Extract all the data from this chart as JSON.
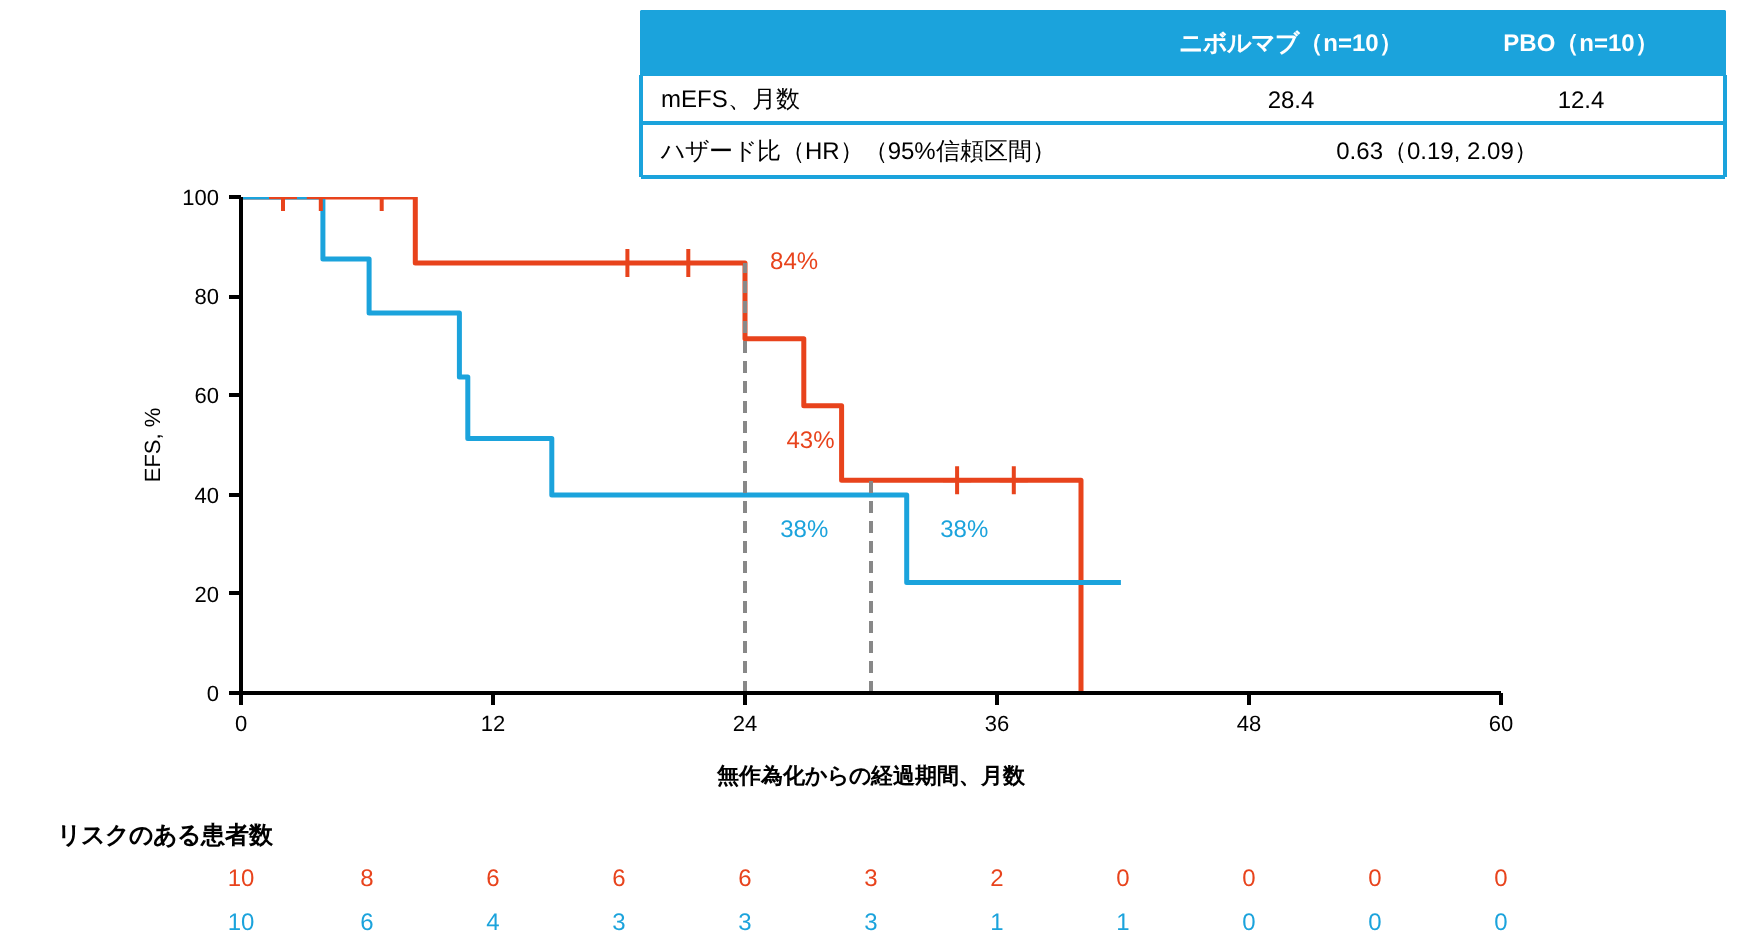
{
  "chart_data": {
    "type": "step",
    "xlabel": "無作為化からの経過期間、月数",
    "ylabel": "EFS, %",
    "xlim": [
      0,
      60
    ],
    "ylim": [
      0,
      100
    ],
    "xticks": [
      0,
      12,
      24,
      36,
      48,
      60
    ],
    "yticks": [
      0,
      20,
      40,
      60,
      80,
      100
    ],
    "grid": false,
    "line_style": "solid",
    "series": [
      {
        "color": "#e8431c",
        "x": [
          0,
          8.3,
          24,
          26.8,
          28.6,
          40
        ],
        "values": [
          100,
          86.7,
          71.4,
          57.9,
          42.9,
          0
        ]
      },
      {
        "color": "#1ba3dc",
        "x": [
          0,
          3.9,
          6.1,
          10.4,
          10.8,
          14.8,
          31.7,
          41.9
        ],
        "values": [
          100,
          87.5,
          76.6,
          63.7,
          51.3,
          39.9,
          22.3,
          22.3
        ]
      },
      {
        "type": "scatter",
        "marker": "cross",
        "color": "#e8431c",
        "x": [
          2.0,
          3.8,
          6.7,
          18.4,
          21.3,
          34.1,
          36.8
        ],
        "values": [
          100,
          100,
          100,
          86.7,
          86.7,
          42.9,
          42.9
        ]
      }
    ],
    "ref_lines": [
      {
        "axis": "x",
        "value": 24,
        "color": "#888888",
        "line_style": "dashed"
      },
      {
        "axis": "x",
        "value": 30,
        "color": "#888888",
        "line_style": "dashed"
      }
    ],
    "annotations": [
      "84%",
      "43%",
      "38%",
      "38%",
      "ニボルマブ（n=10）",
      "PBO（n=10）",
      "mEFS、月数",
      "28.4",
      "12.4",
      "ハザード比（HR）（95%信頼区間）",
      "0.63（0.19, 2.09）",
      "リスクのある患者数",
      "10",
      "8",
      "6",
      "6",
      "6",
      "3",
      "2",
      "0",
      "0",
      "0",
      "0",
      "10",
      "6",
      "4",
      "3",
      "3",
      "3",
      "1",
      "1",
      "0",
      "0",
      "0"
    ]
  }
}
